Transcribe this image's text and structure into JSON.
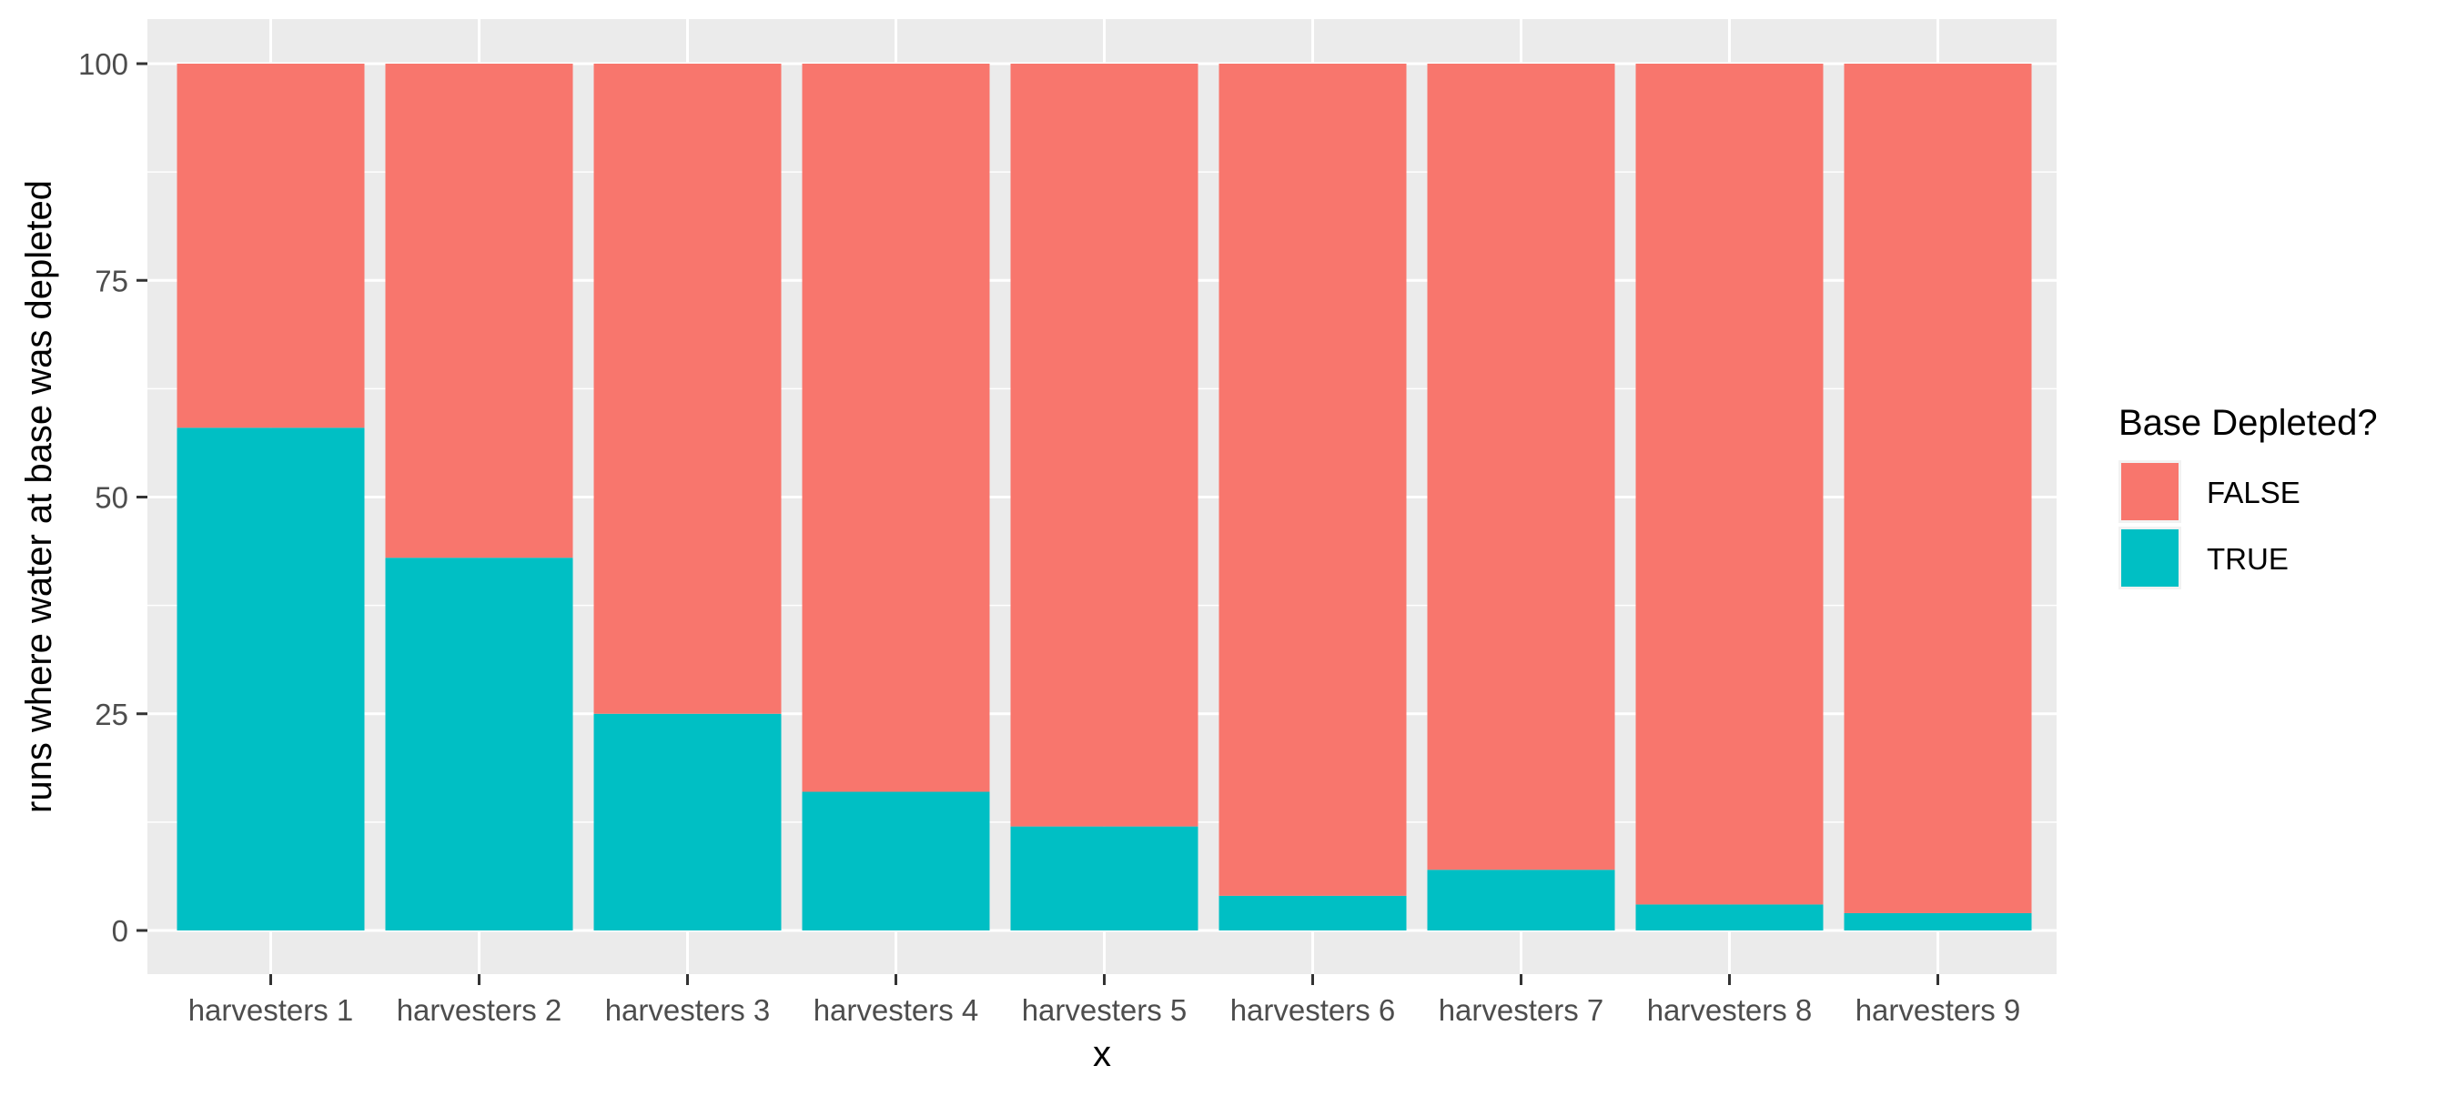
{
  "chart_data": {
    "type": "bar",
    "stacked": true,
    "categories": [
      "harvesters 1",
      "harvesters 2",
      "harvesters 3",
      "harvesters 4",
      "harvesters 5",
      "harvesters 6",
      "harvesters 7",
      "harvesters 8",
      "harvesters 9"
    ],
    "series": [
      {
        "name": "TRUE",
        "color": "#00BFC4",
        "values": [
          58,
          43,
          25,
          16,
          12,
          4,
          7,
          3,
          2
        ]
      },
      {
        "name": "FALSE",
        "color": "#F8766D",
        "values": [
          42,
          57,
          75,
          84,
          88,
          96,
          93,
          97,
          98
        ]
      }
    ],
    "legend_order": [
      "FALSE",
      "TRUE"
    ],
    "legend_title": "Base Depleted?",
    "legend_position": "right",
    "xlabel": "x",
    "ylabel": "runs where water at base was depleted",
    "ylim": [
      0,
      100
    ],
    "yticks": [
      0,
      25,
      50,
      75,
      100
    ],
    "grid": true,
    "panel_background": "#EBEBEB",
    "grid_color": "#FFFFFF",
    "axis_text_color": "#4D4D4D"
  }
}
